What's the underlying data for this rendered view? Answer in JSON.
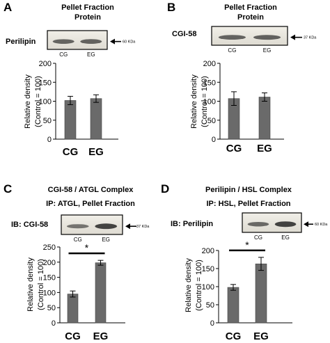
{
  "chart_data": [
    {
      "panel": "A",
      "type": "bar",
      "title": [
        "Pellet Fraction",
        "Protein"
      ],
      "blot_label": "Perilipin",
      "lanes": [
        "CG",
        "EG"
      ],
      "marker": "60 KDa",
      "categories": [
        "CG",
        "EG"
      ],
      "values": [
        102,
        107
      ],
      "errors": [
        11,
        10
      ],
      "ylabel": [
        "Relative density",
        "(Control = 100)"
      ],
      "ylim": [
        0,
        200
      ],
      "yticks": [
        0,
        50,
        100,
        150,
        200
      ],
      "yticklabels": [
        "0",
        "50",
        "100",
        "150",
        "200"
      ],
      "significance": "",
      "bar_color": "#6a6a6a",
      "grid": false,
      "legend": "none"
    },
    {
      "panel": "B",
      "type": "bar",
      "title": [
        "Pellet Fraction",
        "Protein"
      ],
      "blot_label": "CGI-58",
      "lanes": [
        "CG",
        "EG"
      ],
      "marker": "37 KDa",
      "categories": [
        "CG",
        "EG"
      ],
      "values": [
        107,
        111
      ],
      "errors": [
        18,
        11
      ],
      "ylabel": [
        "Relative density",
        "(Control = 100)"
      ],
      "ylim": [
        0,
        200
      ],
      "yticks": [
        0,
        50,
        100,
        150,
        200
      ],
      "yticklabels": [
        "0",
        "50",
        "100",
        "150",
        "200"
      ],
      "significance": "",
      "bar_color": "#6a6a6a",
      "grid": false,
      "legend": "none"
    },
    {
      "panel": "C",
      "type": "bar",
      "title": [
        "CGI-58 / ATGL Complex",
        "IP: ATGL, Pellet Fraction"
      ],
      "blot_label": "IB: CGI-58",
      "lanes": [
        "CG",
        "EG"
      ],
      "marker": "37 KDa",
      "categories": [
        "CG",
        "EG"
      ],
      "values": [
        95,
        198
      ],
      "errors": [
        10,
        8
      ],
      "ylabel": [
        "Relative density",
        "(Control = 100)"
      ],
      "ylim": [
        0,
        250
      ],
      "yticks": [
        0,
        50,
        100,
        150,
        200,
        250
      ],
      "yticklabels": [
        "0",
        "50",
        "100",
        "150",
        "200",
        "250"
      ],
      "significance": "*",
      "bar_color": "#6a6a6a",
      "grid": false,
      "legend": "none"
    },
    {
      "panel": "D",
      "type": "bar",
      "title": [
        "Perilipin / HSL Complex",
        "IP: HSL, Pellet Fraction"
      ],
      "blot_label": "IB: Perilipin",
      "lanes": [
        "CG",
        "EG"
      ],
      "marker": "60 KDa",
      "categories": [
        "CG",
        "EG"
      ],
      "values": [
        98,
        163
      ],
      "errors": [
        8,
        18
      ],
      "ylabel": [
        "Relative density",
        "(Control = 100)"
      ],
      "ylim": [
        0,
        200
      ],
      "yticks": [
        0,
        50,
        100,
        150,
        200
      ],
      "yticklabels": [
        "0",
        "50",
        "100",
        "150",
        "200"
      ],
      "significance": "*",
      "bar_color": "#6a6a6a",
      "grid": false,
      "legend": "none"
    }
  ]
}
